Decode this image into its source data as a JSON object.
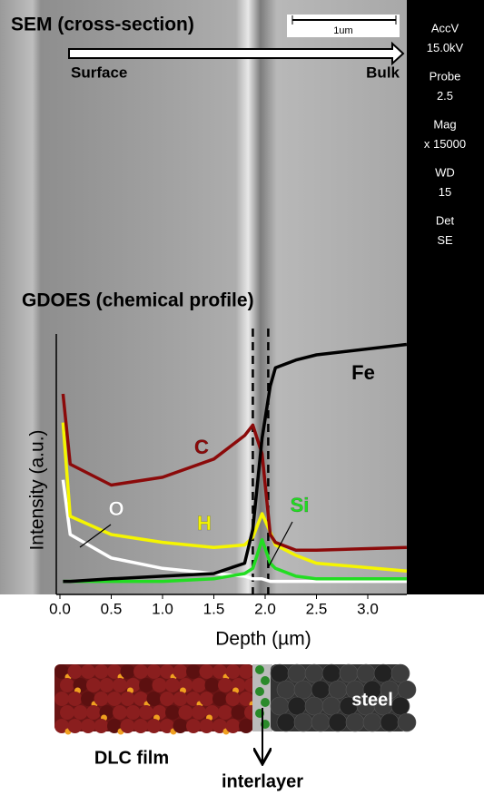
{
  "sem": {
    "title": "SEM (cross-section)",
    "scale_bar": "1um",
    "surface": "Surface",
    "bulk": "Bulk",
    "info": [
      "AccV",
      "15.0kV",
      "Probe",
      "2.5",
      "Mag",
      "x 15000",
      "WD",
      "15",
      "Det",
      "SE"
    ]
  },
  "chart_data": {
    "type": "line",
    "title": "GDOES (chemical profile)",
    "x_label": "Depth (µm)",
    "y_label": "Intensity (a.u.)",
    "x": [
      0.03,
      0.1,
      0.5,
      1.0,
      1.5,
      1.8,
      1.88,
      1.97,
      2.05,
      2.1,
      2.3,
      2.5,
      3.38
    ],
    "xlim": [
      -0.05,
      3.38
    ],
    "ylim": [
      0,
      100
    ],
    "xticks": [
      {
        "value": 0,
        "label": "0.0"
      },
      0.5,
      {
        "value": 1,
        "label": "1.0"
      },
      1.5,
      {
        "value": 2,
        "label": "2.0"
      },
      2.5,
      {
        "value": 3,
        "label": "3.0"
      }
    ],
    "boundaries": [
      1.88,
      2.03
    ],
    "series": [
      {
        "name": "Fe",
        "color": "#000000",
        "values": [
          5,
          5,
          6,
          7,
          8,
          12,
          25,
          60,
          80,
          87,
          90,
          92,
          96
        ]
      },
      {
        "name": "C",
        "color": "#8b0a0a",
        "values": [
          77,
          50,
          42,
          45,
          52,
          61,
          65,
          54,
          23,
          20,
          17,
          17,
          18
        ]
      },
      {
        "name": "H",
        "color": "#f5f500",
        "values": [
          66,
          30,
          23,
          20,
          18,
          19,
          22,
          31,
          24,
          19,
          15,
          12,
          9
        ]
      },
      {
        "name": "O",
        "color": "#ffffff",
        "values": [
          44,
          23,
          14,
          10,
          8,
          7,
          6,
          6,
          5,
          5,
          5,
          5,
          5
        ]
      },
      {
        "name": "Si",
        "color": "#22dd22",
        "values": [
          5,
          5,
          5,
          5,
          6,
          8,
          10,
          21,
          12,
          10,
          7,
          6,
          6
        ]
      }
    ]
  },
  "schematic": {
    "steel": "steel",
    "film": "DLC film",
    "interlayer": "interlayer"
  }
}
